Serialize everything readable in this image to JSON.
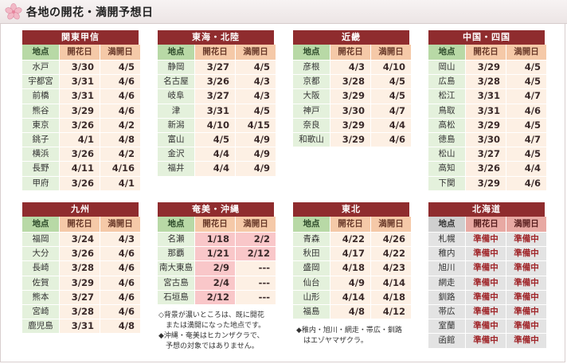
{
  "page": {
    "title": "各地の開花・満開予想日"
  },
  "columns": [
    "地点",
    "開花日",
    "満開日"
  ],
  "regions": [
    {
      "name": "関東甲信",
      "rows": [
        [
          "水戸",
          "3/30",
          "4/5"
        ],
        [
          "宇都宮",
          "3/31",
          "4/6"
        ],
        [
          "前橋",
          "3/31",
          "4/6"
        ],
        [
          "熊谷",
          "3/29",
          "4/6"
        ],
        [
          "東京",
          "3/26",
          "4/2"
        ],
        [
          "銚子",
          "4/1",
          "4/8"
        ],
        [
          "横浜",
          "3/26",
          "4/2"
        ],
        [
          "長野",
          "4/11",
          "4/16"
        ],
        [
          "甲府",
          "3/26",
          "4/1"
        ]
      ]
    },
    {
      "name": "東海・北陸",
      "rows": [
        [
          "静岡",
          "3/27",
          "4/5"
        ],
        [
          "名古屋",
          "3/26",
          "4/3"
        ],
        [
          "岐阜",
          "3/27",
          "4/3"
        ],
        [
          "津",
          "3/31",
          "4/5"
        ],
        [
          "新潟",
          "4/10",
          "4/15"
        ],
        [
          "富山",
          "4/5",
          "4/9"
        ],
        [
          "金沢",
          "4/4",
          "4/9"
        ],
        [
          "福井",
          "4/4",
          "4/9"
        ]
      ]
    },
    {
      "name": "近畿",
      "rows": [
        [
          "彦根",
          "4/3",
          "4/10"
        ],
        [
          "京都",
          "3/28",
          "4/5"
        ],
        [
          "大阪",
          "3/29",
          "4/5"
        ],
        [
          "神戸",
          "3/30",
          "4/7"
        ],
        [
          "奈良",
          "3/29",
          "4/4"
        ],
        [
          "和歌山",
          "3/29",
          "4/6"
        ]
      ]
    },
    {
      "name": "中国・四国",
      "rows": [
        [
          "岡山",
          "3/29",
          "4/5"
        ],
        [
          "広島",
          "3/28",
          "4/5"
        ],
        [
          "松江",
          "3/31",
          "4/7"
        ],
        [
          "鳥取",
          "3/31",
          "4/6"
        ],
        [
          "高松",
          "3/29",
          "4/5"
        ],
        [
          "徳島",
          "3/30",
          "4/7"
        ],
        [
          "松山",
          "3/27",
          "4/5"
        ],
        [
          "高知",
          "3/26",
          "4/4"
        ],
        [
          "下関",
          "3/29",
          "4/6"
        ]
      ]
    },
    {
      "name": "九州",
      "rows": [
        [
          "福岡",
          "3/24",
          "4/3"
        ],
        [
          "大分",
          "3/26",
          "4/6"
        ],
        [
          "長崎",
          "3/28",
          "4/6"
        ],
        [
          "佐賀",
          "3/29",
          "4/6"
        ],
        [
          "熊本",
          "3/27",
          "4/6"
        ],
        [
          "宮崎",
          "3/28",
          "4/6"
        ],
        [
          "鹿児島",
          "3/31",
          "4/8"
        ]
      ]
    },
    {
      "name": "奄美・沖縄",
      "rows": [
        [
          "名瀬",
          "1/18",
          "2/2"
        ],
        [
          "那覇",
          "1/21",
          "2/12"
        ],
        [
          "南大東島",
          "2/9",
          "---"
        ],
        [
          "宮古島",
          "2/4",
          "---"
        ],
        [
          "石垣島",
          "2/12",
          "---"
        ]
      ],
      "highlight": [
        [
          1,
          2
        ],
        [
          1,
          2
        ],
        [
          1
        ],
        [
          1
        ],
        [
          1
        ]
      ]
    },
    {
      "name": "東北",
      "rows": [
        [
          "青森",
          "4/22",
          "4/26"
        ],
        [
          "秋田",
          "4/17",
          "4/22"
        ],
        [
          "盛岡",
          "4/18",
          "4/23"
        ],
        [
          "仙台",
          "4/9",
          "4/14"
        ],
        [
          "山形",
          "4/14",
          "4/18"
        ],
        [
          "福島",
          "4/8",
          "4/12"
        ]
      ]
    },
    {
      "name": "北海道",
      "gray": true,
      "rows": [
        [
          "札幌",
          "準備中",
          "準備中"
        ],
        [
          "稚内",
          "準備中",
          "準備中"
        ],
        [
          "旭川",
          "準備中",
          "準備中"
        ],
        [
          "網走",
          "準備中",
          "準備中"
        ],
        [
          "釧路",
          "準備中",
          "準備中"
        ],
        [
          "帯広",
          "準備中",
          "準備中"
        ],
        [
          "室蘭",
          "準備中",
          "準備中"
        ],
        [
          "函館",
          "準備中",
          "準備中"
        ]
      ]
    }
  ],
  "notes": {
    "okinawa": [
      "◇背景が濃いところは、既に開花",
      "　または満開になった地点です。",
      "◆沖縄・奄美はヒカンザクラで、",
      "　予想の対象ではありません。"
    ],
    "tohoku": [
      "◆稚内・旭川・網走・帯広・釧路",
      "　はエゾヤマザクラ。"
    ]
  },
  "colors": {
    "region_header": "#8f2c2e",
    "place_col": "#b8d9a6",
    "date_col": "#f5c9a8",
    "bloomed": "#f9c7c9"
  }
}
